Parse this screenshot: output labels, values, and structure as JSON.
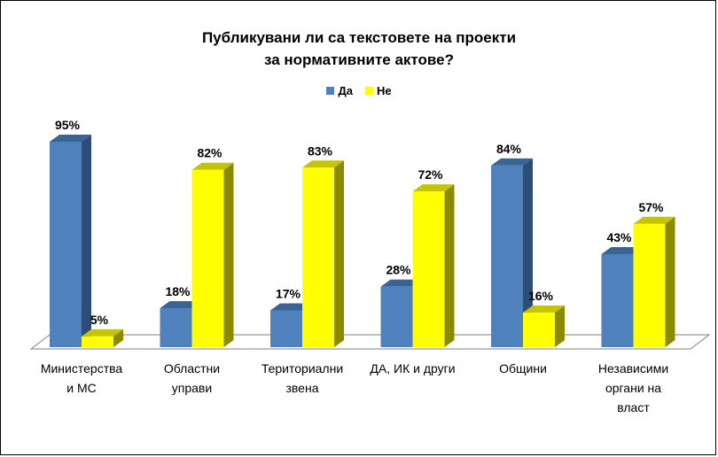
{
  "chart_data": {
    "type": "bar",
    "title_lines": [
      "Публикувани ли са текстовете на проекти",
      "за нормативните актове?"
    ],
    "categories": [
      [
        "Министерства",
        "и МС"
      ],
      [
        "Областни",
        "управи"
      ],
      [
        "Териториални",
        "звена"
      ],
      [
        "ДА, ИК и други"
      ],
      [
        "Общини"
      ],
      [
        "Независими",
        "органи на",
        "власт"
      ]
    ],
    "series": [
      {
        "name": "Да",
        "values": [
          95,
          18,
          17,
          28,
          84,
          43
        ],
        "labels": [
          "95%",
          "18%",
          "17%",
          "28%",
          "84%",
          "43%"
        ],
        "color": "#4f81bd",
        "side": "#2c4d75",
        "top": "#3a6496"
      },
      {
        "name": "Не",
        "values": [
          5,
          82,
          83,
          72,
          16,
          57
        ],
        "labels": [
          "5%",
          "82%",
          "83%",
          "72%",
          "16%",
          "57%"
        ],
        "color": "#ffff00",
        "side": "#8a8a00",
        "top": "#c4c400"
      }
    ],
    "ylim": [
      0,
      100
    ],
    "style": "3d-clustered-column",
    "grid": false,
    "legend": "top"
  }
}
